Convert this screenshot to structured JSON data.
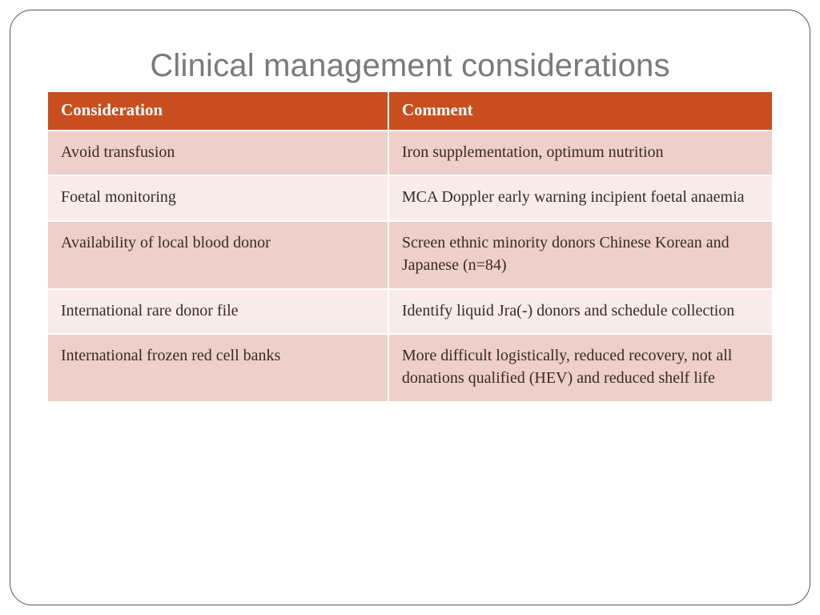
{
  "slide": {
    "title": "Clinical management considerations",
    "title_color": "#7a7a7a",
    "title_fontsize": 40,
    "frame_border_color": "#555555",
    "frame_border_radius": 28
  },
  "table": {
    "header_bg": "#c84e1f",
    "header_text_color": "#ffffff",
    "row_bg_odd": "#eecfc9",
    "row_bg_even": "#f8ece9",
    "cell_text_color": "#3a2a24",
    "columns": [
      {
        "label": "Consideration",
        "width_pct": 47
      },
      {
        "label": "Comment",
        "width_pct": 53
      }
    ],
    "rows": [
      {
        "consideration": "Avoid transfusion",
        "comment": "Iron supplementation, optimum nutrition"
      },
      {
        "consideration": "Foetal monitoring",
        "comment": "MCA Doppler early warning incipient foetal anaemia"
      },
      {
        "consideration": "Availability of  local blood donor",
        "comment": "Screen ethnic minority donors Chinese Korean and Japanese (n=84)"
      },
      {
        "consideration": "International rare donor file",
        "comment": "Identify liquid Jra(-) donors and schedule collection"
      },
      {
        "consideration": "International frozen red cell banks",
        "comment": "More difficult logistically, reduced recovery, not all donations qualified (HEV) and reduced shelf life"
      }
    ]
  }
}
